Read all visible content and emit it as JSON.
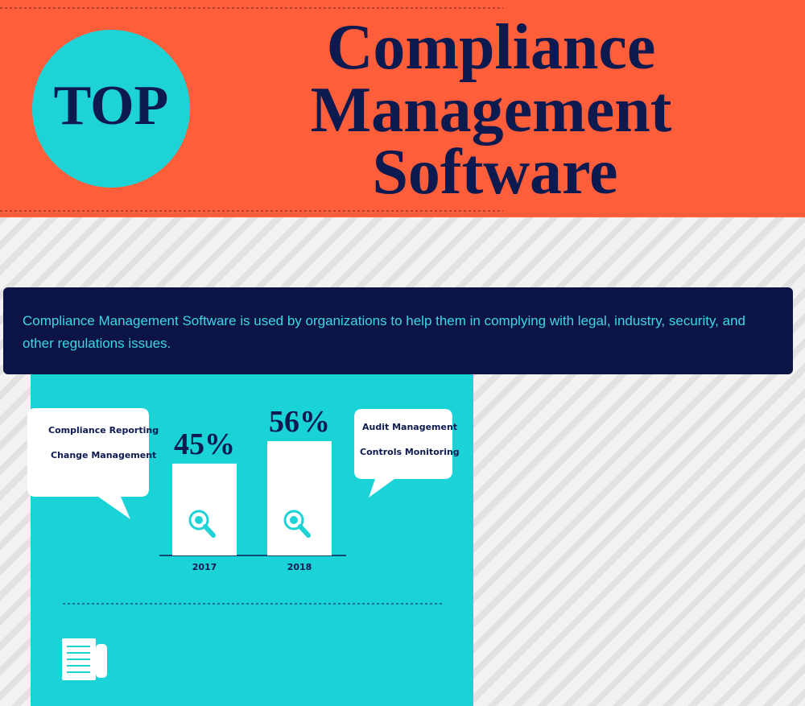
{
  "header": {
    "badge": "TOP",
    "title_lines": [
      "Compliance",
      "Management",
      "Software"
    ]
  },
  "intro": "Compliance Management Software is used by organizations to help them in complying with legal, industry, security, and other regulations issues.",
  "callouts": {
    "left": [
      "Compliance Reporting",
      "Change Management"
    ],
    "right": [
      "Audit Management",
      "Controls Monitoring"
    ]
  },
  "chart_data": {
    "type": "bar",
    "categories": [
      "2017",
      "2018"
    ],
    "values": [
      45,
      56
    ],
    "value_labels": [
      "45%",
      "56%"
    ],
    "color": "#ffffff"
  }
}
